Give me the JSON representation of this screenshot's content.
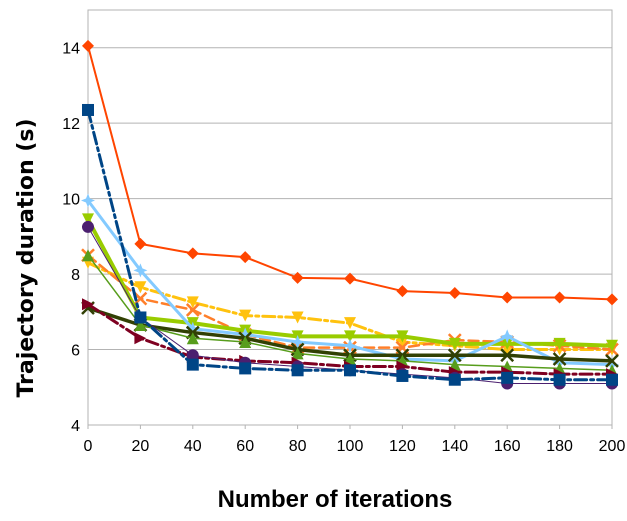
{
  "chart_data": {
    "type": "line",
    "title": "",
    "xlabel": "Number of iterations",
    "ylabel": "Trajectory duration (s)",
    "xlim": [
      0,
      200
    ],
    "ylim": [
      4,
      15
    ],
    "x_ticks": [
      "0",
      "20",
      "40",
      "60",
      "80",
      "100",
      "120",
      "140",
      "160",
      "180",
      "200"
    ],
    "y_ticks": [
      "4",
      "6",
      "8",
      "10",
      "12",
      "14"
    ],
    "grid": "horizontal",
    "legend": "none",
    "x": [
      0,
      20,
      40,
      60,
      80,
      100,
      120,
      140,
      160,
      180,
      200
    ],
    "series": [
      {
        "color": "#ff4500",
        "marker": "diamond",
        "dash": "solid",
        "width": 2,
        "values": [
          14.05,
          8.8,
          8.55,
          8.45,
          7.9,
          7.88,
          7.55,
          7.5,
          7.38,
          7.38,
          7.33
        ]
      },
      {
        "color": "#ffc20e",
        "marker": "triangle-down",
        "dash": "dashdot",
        "width": 3,
        "values": [
          8.3,
          7.65,
          7.25,
          6.9,
          6.85,
          6.7,
          6.2,
          6.1,
          6.0,
          6.0,
          6.0
        ]
      },
      {
        "color": "#ff7f2a",
        "marker": "x",
        "dash": "dash",
        "width": 2.5,
        "values": [
          8.5,
          7.35,
          7.05,
          6.4,
          6.05,
          6.05,
          6.05,
          6.25,
          6.2,
          6.1,
          6.0
        ]
      },
      {
        "color": "#99cc00",
        "marker": "triangle-down",
        "dash": "solid",
        "width": 4,
        "values": [
          9.45,
          6.85,
          6.7,
          6.5,
          6.35,
          6.35,
          6.35,
          6.15,
          6.15,
          6.15,
          6.1
        ]
      },
      {
        "color": "#83caff",
        "marker": "star",
        "dash": "solid",
        "width": 3,
        "values": [
          9.95,
          8.1,
          6.55,
          6.4,
          6.2,
          6.1,
          5.75,
          5.7,
          6.35,
          5.65,
          5.6
        ]
      },
      {
        "color": "#314004",
        "marker": "x",
        "dash": "solid",
        "width": 3.5,
        "values": [
          7.1,
          6.65,
          6.45,
          6.3,
          6.0,
          5.85,
          5.85,
          5.85,
          5.85,
          5.75,
          5.7
        ]
      },
      {
        "color": "#579d1c",
        "marker": "triangle",
        "dash": "solid",
        "width": 1.5,
        "values": [
          8.5,
          6.65,
          6.3,
          6.2,
          5.9,
          5.75,
          5.7,
          5.6,
          5.55,
          5.5,
          5.45
        ]
      },
      {
        "color": "#7e0021",
        "marker": "triangle-right",
        "dash": "dashdot",
        "width": 3,
        "values": [
          7.2,
          6.3,
          5.8,
          5.7,
          5.65,
          5.55,
          5.55,
          5.4,
          5.4,
          5.35,
          5.35
        ]
      },
      {
        "color": "#4b1f6f",
        "marker": "circle",
        "dash": "solid",
        "width": 1,
        "values": [
          9.25,
          6.85,
          5.85,
          5.65,
          5.55,
          5.45,
          5.35,
          5.25,
          5.1,
          5.1,
          5.1
        ]
      },
      {
        "color": "#004586",
        "marker": "square",
        "dash": "dashdot",
        "width": 3,
        "values": [
          12.35,
          6.85,
          5.6,
          5.5,
          5.45,
          5.45,
          5.3,
          5.2,
          5.25,
          5.2,
          5.2
        ]
      }
    ]
  }
}
